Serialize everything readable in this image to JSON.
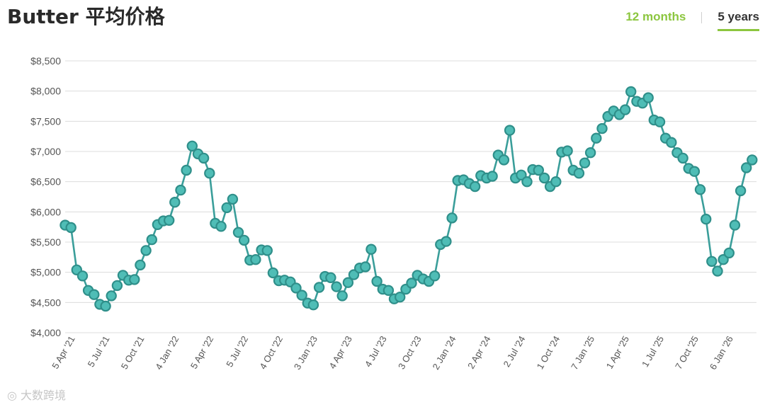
{
  "header": {
    "title": "Butter 平均价格",
    "tab_12_months": "12 months",
    "tab_5_years": "5 years"
  },
  "watermark": "◎ 大数跨境",
  "colors": {
    "line": "#3a9e9a",
    "marker_fill": "#4fbdb6",
    "marker_stroke": "#2f8f8a",
    "grid": "#dcdcdc",
    "accent": "#8cc63f"
  },
  "chart_data": {
    "type": "line",
    "y_tick_labels": [
      "$4,000",
      "$4,500",
      "$5,000",
      "$5,500",
      "$6,000",
      "$6,500",
      "$7,000",
      "$7,500",
      "$8,000",
      "$8,500"
    ],
    "y_ticks": [
      4000,
      4500,
      5000,
      5500,
      6000,
      6500,
      7000,
      7500,
      8000,
      8500
    ],
    "ylim": [
      4000,
      8500
    ],
    "x_tick_labels": [
      "5 Apr '21",
      "5 Jul '21",
      "5 Oct '21",
      "4 Jan '22",
      "5 Apr '22",
      "5 Jul '22",
      "4 Oct '22",
      "3 Jan '23",
      "4 Apr '23",
      "4 Jul '23",
      "3 Oct '23",
      "2 Jan '24",
      "2 Apr '24",
      "2 Jul '24",
      "1 Oct '24",
      "7 Jan '25",
      "1 Apr '25",
      "1 Jul '25",
      "7 Oct '25",
      "6 Jan '26"
    ],
    "x_tick_index": [
      1,
      7,
      13,
      19,
      25,
      31,
      37,
      43,
      49,
      55,
      61,
      67,
      73,
      79,
      85,
      91,
      97,
      103,
      109,
      115
    ],
    "grid": true,
    "legend": "none",
    "values": [
      5780,
      5740,
      5040,
      4940,
      4700,
      4630,
      4470,
      4440,
      4610,
      4780,
      4950,
      4870,
      4880,
      5120,
      5360,
      5540,
      5790,
      5850,
      5860,
      6160,
      6360,
      6690,
      7090,
      6960,
      6890,
      6640,
      5810,
      5760,
      6070,
      6210,
      5660,
      5530,
      5200,
      5210,
      5370,
      5360,
      4990,
      4860,
      4870,
      4840,
      4740,
      4620,
      4490,
      4460,
      4750,
      4930,
      4910,
      4760,
      4610,
      4830,
      4960,
      5070,
      5090,
      5380,
      4850,
      4720,
      4700,
      4560,
      4590,
      4720,
      4820,
      4950,
      4890,
      4850,
      4940,
      5460,
      5510,
      5900,
      6520,
      6530,
      6470,
      6420,
      6600,
      6560,
      6590,
      6940,
      6860,
      7350,
      6560,
      6610,
      6500,
      6700,
      6690,
      6560,
      6420,
      6500,
      6990,
      7010,
      6690,
      6640,
      6810,
      6980,
      7220,
      7380,
      7580,
      7670,
      7610,
      7690,
      7990,
      7830,
      7800,
      7890,
      7520,
      7490,
      7220,
      7150,
      6980,
      6890,
      6720,
      6670,
      6370,
      5880,
      5180,
      5020,
      5210,
      5320,
      5780,
      6350,
      6730,
      6860
    ]
  }
}
